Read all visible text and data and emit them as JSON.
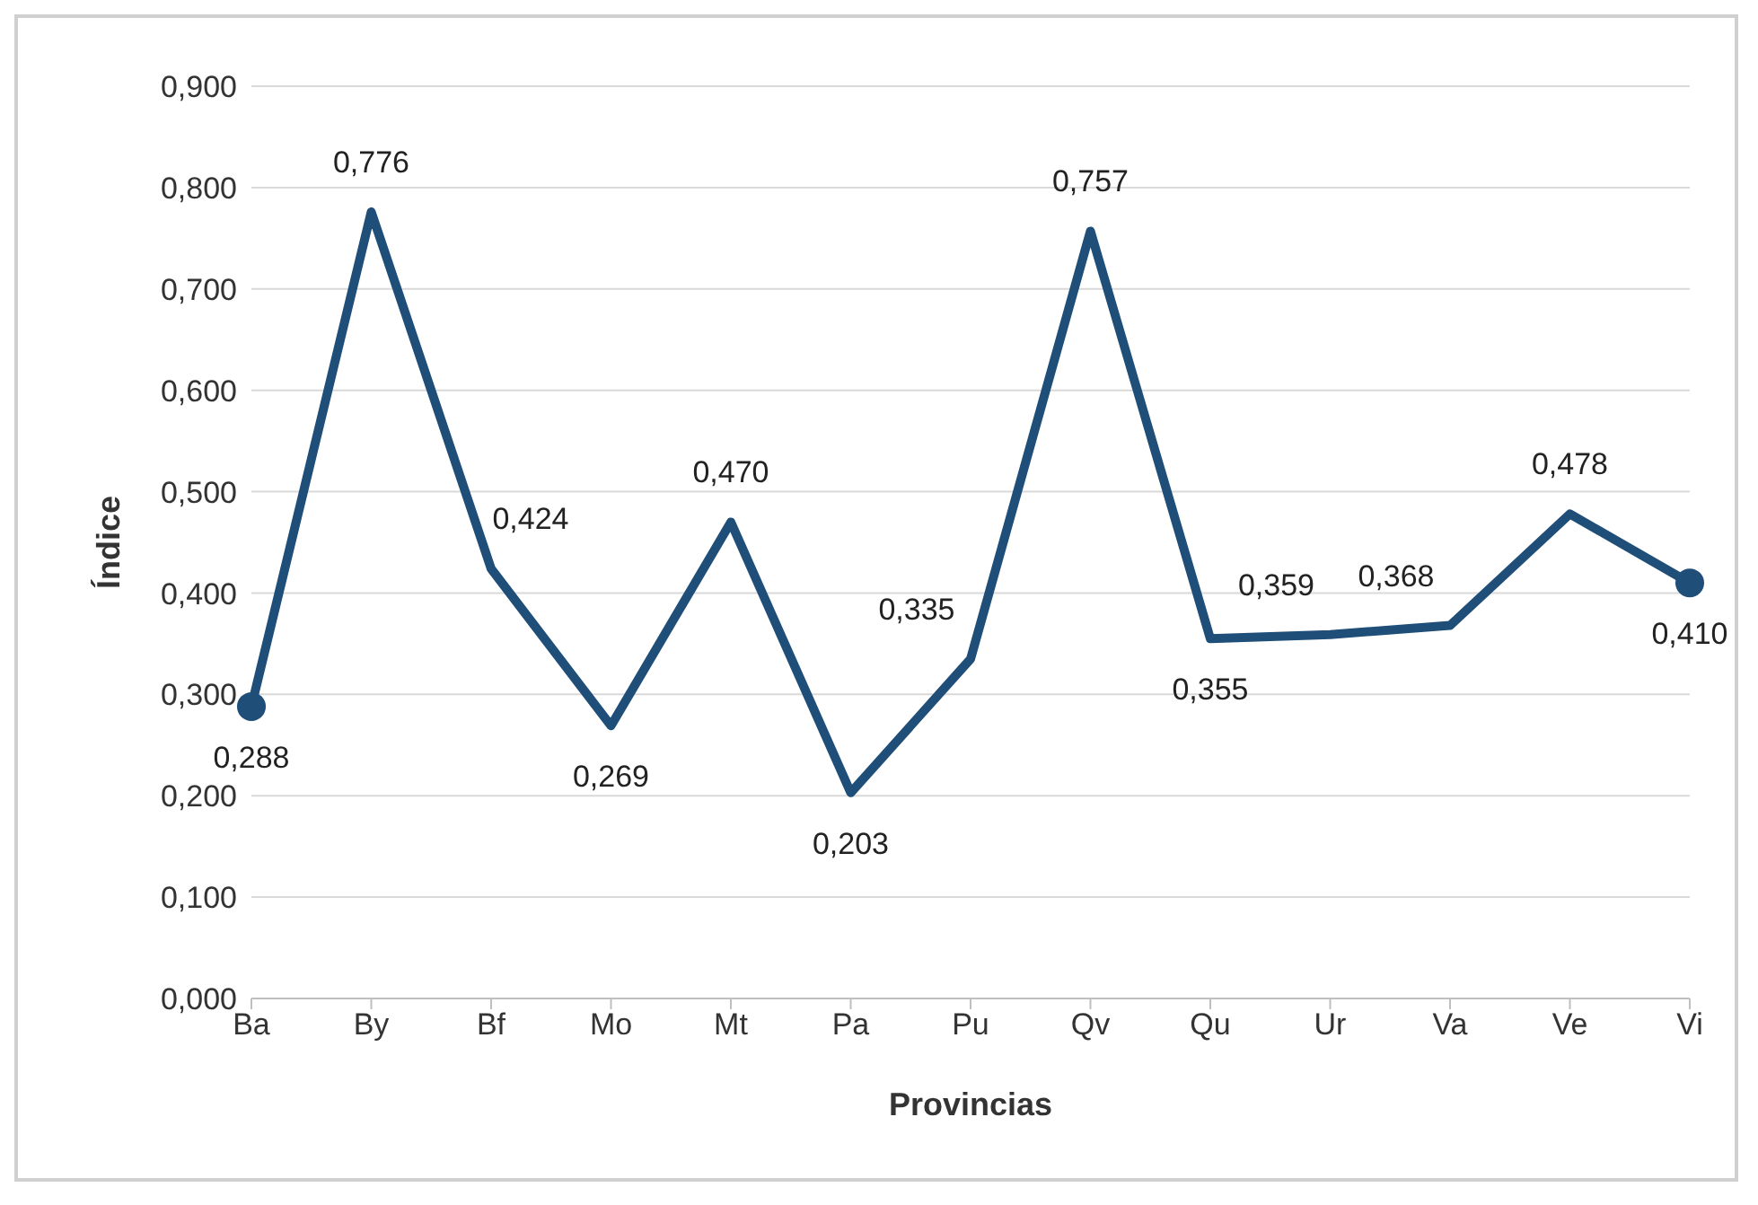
{
  "chart_data": {
    "type": "line",
    "xlabel": "Provincias",
    "ylabel": "Índice",
    "categories": [
      "Ba",
      "By",
      "Bf",
      "Mo",
      "Mt",
      "Pa",
      "Pu",
      "Qv",
      "Qu",
      "Ur",
      "Va",
      "Ve",
      "Vi"
    ],
    "series": [
      {
        "color": "#1f4e79",
        "marker": "none",
        "values": [
          0.288,
          0.776,
          0.424,
          0.269,
          0.47,
          0.203,
          0.335,
          0.757,
          0.355,
          0.359,
          0.368,
          0.478,
          0.41
        ],
        "value_labels": [
          "0,288",
          "0,776",
          "0,424",
          "0,269",
          "0,470",
          "0,203",
          "0,335",
          "0,757",
          "0,355",
          "0,359",
          "0,368",
          "0,478",
          "0,410"
        ]
      },
      {
        "type": "scatter",
        "color": "#1f4e79",
        "marker": "circle",
        "x": [
          "Ba",
          "Vi"
        ],
        "values": [
          0.288,
          0.41
        ]
      }
    ],
    "ylim": [
      0,
      0.9
    ],
    "yticks": [
      {
        "value": 0,
        "label": "0,000"
      },
      {
        "value": 0.1,
        "label": "0,100"
      },
      {
        "value": 0.2,
        "label": "0,200"
      },
      {
        "value": 0.3,
        "label": "0,300"
      },
      {
        "value": 0.4,
        "label": "0,400"
      },
      {
        "value": 0.5,
        "label": "0,500"
      },
      {
        "value": 0.6,
        "label": "0,600"
      },
      {
        "value": 0.7,
        "label": "0,700"
      },
      {
        "value": 0.8,
        "label": "0,800"
      },
      {
        "value": 0.9,
        "label": "0,900"
      }
    ],
    "grid": "y",
    "line_style": "solid"
  }
}
